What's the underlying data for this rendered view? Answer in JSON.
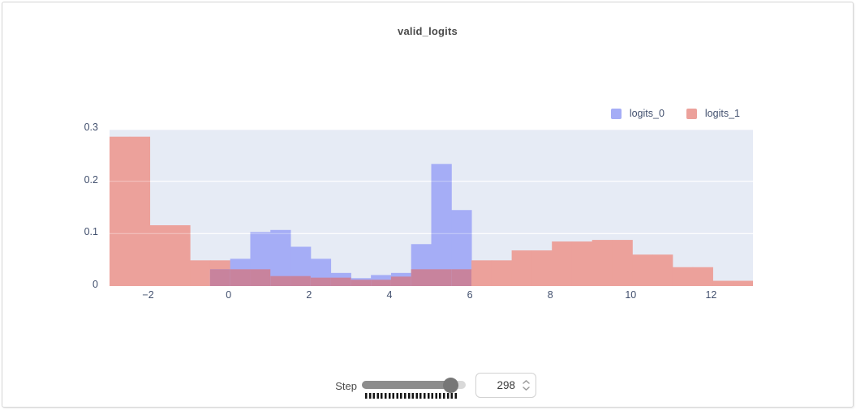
{
  "card": {
    "title": "valid_logits"
  },
  "legend": [
    {
      "label": "logits_0",
      "color": "#a5adf6"
    },
    {
      "label": "logits_1",
      "color": "#eca19b"
    }
  ],
  "chart_data": {
    "type": "bar",
    "subtype": "overlaid-histogram",
    "title": "valid_logits",
    "xlabel": "",
    "ylabel": "",
    "xlim": [
      -3,
      13
    ],
    "ylim": [
      0,
      0.3
    ],
    "bin_width": 0.5,
    "bin_start": -3,
    "xticks": [
      {
        "value": -2,
        "label": "−2"
      },
      {
        "value": 0,
        "label": "0"
      },
      {
        "value": 2,
        "label": "2"
      },
      {
        "value": 4,
        "label": "4"
      },
      {
        "value": 6,
        "label": "6"
      },
      {
        "value": 8,
        "label": "8"
      },
      {
        "value": 10,
        "label": "10"
      },
      {
        "value": 12,
        "label": "12"
      }
    ],
    "yticks": [
      {
        "value": 0,
        "label": "0"
      },
      {
        "value": 0.1,
        "label": "0.1"
      },
      {
        "value": 0.2,
        "label": "0.2"
      },
      {
        "value": 0.3,
        "label": "0.3"
      }
    ],
    "grid": true,
    "legend_position": "top-right",
    "plot_bg": "#e6ebf5",
    "gridline_color": "#ffffff",
    "overlap_color": "#c8839d",
    "series": [
      {
        "name": "logits_0",
        "color": "#a5adf6",
        "values": [
          0,
          0,
          0,
          0,
          0,
          0.032,
          0.052,
          0.103,
          0.107,
          0.075,
          0.052,
          0.025,
          0.015,
          0.021,
          0.025,
          0.08,
          0.233,
          0.145,
          0,
          0,
          0,
          0,
          0,
          0,
          0,
          0,
          0,
          0,
          0,
          0,
          0,
          0
        ]
      },
      {
        "name": "logits_1",
        "color": "#eca19b",
        "values": [
          0.285,
          0.285,
          0.116,
          0.116,
          0.049,
          0.049,
          0.032,
          0.032,
          0.019,
          0.019,
          0.016,
          0.016,
          0.012,
          0.012,
          0.018,
          0.032,
          0.032,
          0.032,
          0.049,
          0.049,
          0.068,
          0.068,
          0.085,
          0.085,
          0.088,
          0.088,
          0.06,
          0.06,
          0.036,
          0.036,
          0.01,
          0.01
        ]
      }
    ]
  },
  "controls": {
    "step_label": "Step",
    "step_value": "298"
  }
}
